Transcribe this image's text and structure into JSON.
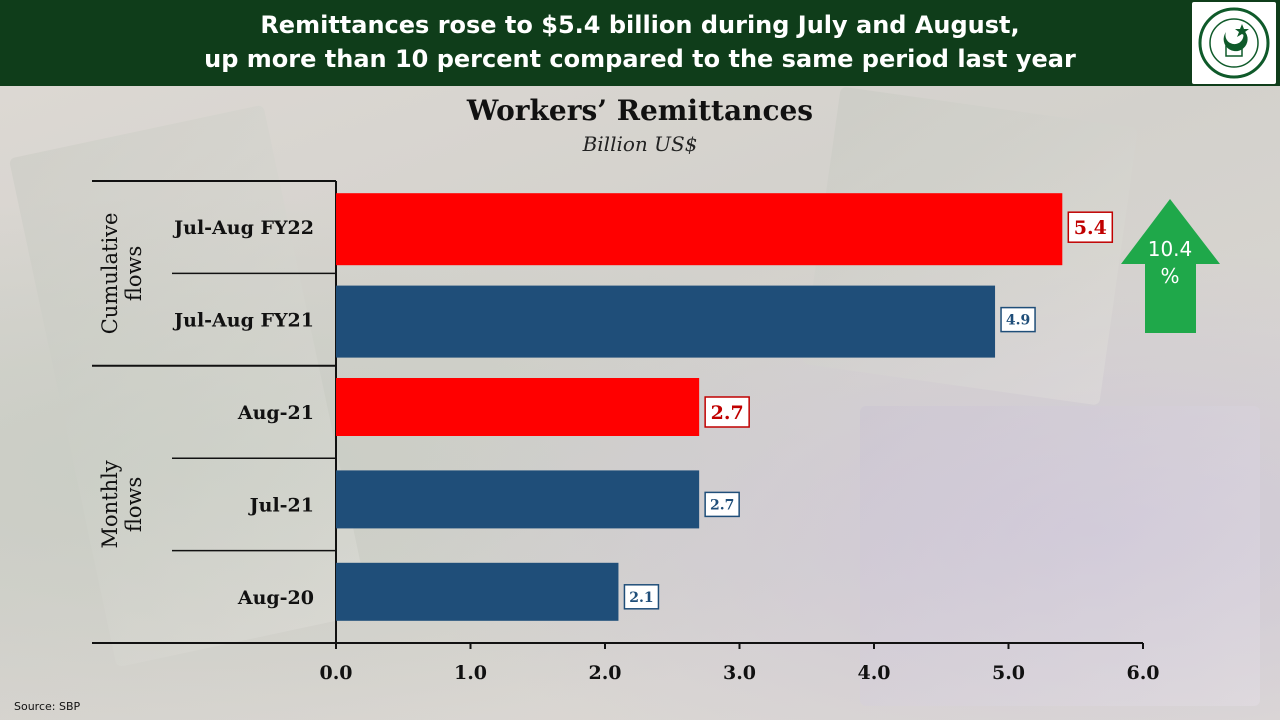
{
  "header": {
    "title": "Remittances rose to $5.4 billion during July and August,\nup more than 10 percent compared to the same period last year"
  },
  "logo": {
    "icon": "state-bank-of-pakistan-seal-icon",
    "text": "STATE BANK OF PAKISTAN"
  },
  "source": "Source: SBP",
  "growth": {
    "value": "10.4",
    "unit": "%",
    "color": "#1fa84a",
    "icon": "up-arrow-icon"
  },
  "chart_data": {
    "type": "bar",
    "orientation": "horizontal",
    "title": "Workers’ Remittances",
    "subtitle": "Billion US$",
    "xlim": [
      0,
      6
    ],
    "xticks": [
      "0.0",
      "1.0",
      "2.0",
      "3.0",
      "4.0",
      "5.0",
      "6.0"
    ],
    "grid": false,
    "groups": [
      {
        "label": "Cumulative flows",
        "categories": [
          "Jul-Aug FY22",
          "Jul-Aug FY21"
        ]
      },
      {
        "label": "Monthly flows",
        "categories": [
          "Aug-21",
          "Jul-21",
          "Aug-20"
        ]
      }
    ],
    "categories": [
      "Jul-Aug FY22",
      "Jul-Aug FY21",
      "Aug-21",
      "Jul-21",
      "Aug-20"
    ],
    "values": [
      5.4,
      4.9,
      2.7,
      2.7,
      2.1
    ],
    "labels": [
      "5.4",
      "4.9",
      "2.7",
      "2.7",
      "2.1"
    ],
    "colors": [
      "#ff0000",
      "#1f4e79",
      "#ff0000",
      "#1f4e79",
      "#1f4e79"
    ],
    "highlight": [
      true,
      false,
      true,
      false,
      false
    ]
  }
}
